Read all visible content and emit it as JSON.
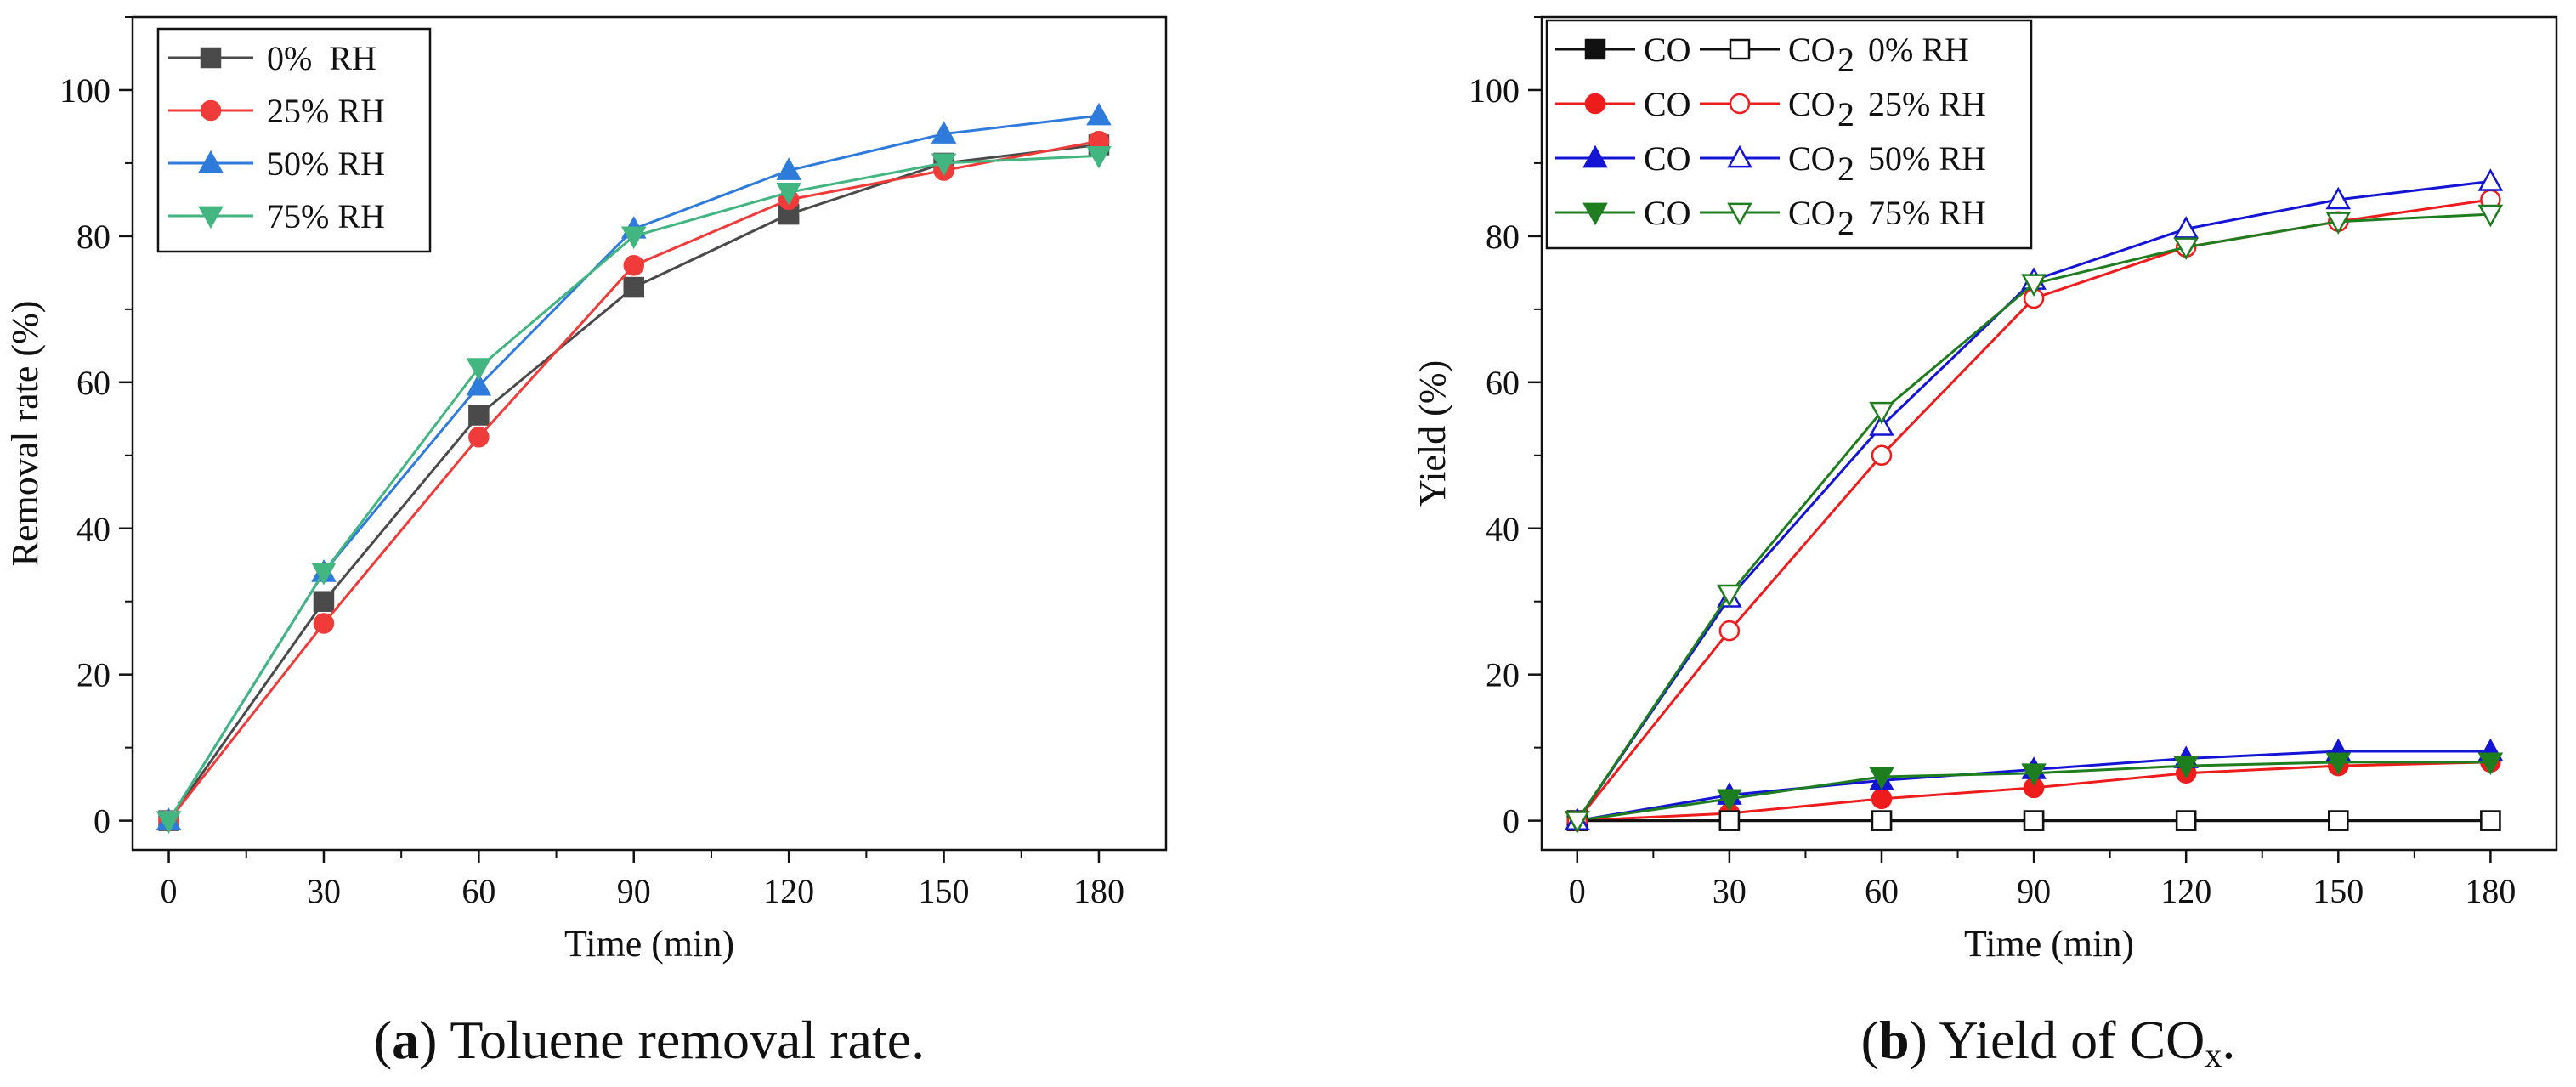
{
  "chart_data": [
    {
      "type": "line",
      "caption": {
        "open": "(",
        "letter": "a",
        "rest": ") Toluene removal rate."
      },
      "xlabel": "Time (min)",
      "ylabel": "Removal rate (%)",
      "xlim": [
        -7,
        193
      ],
      "ylim": [
        -4,
        110
      ],
      "x": [
        0,
        30,
        60,
        90,
        120,
        150,
        180
      ],
      "xticks": [
        0,
        30,
        60,
        90,
        120,
        150,
        180
      ],
      "yticks": [
        0,
        20,
        40,
        60,
        80,
        100
      ],
      "grid": false,
      "legend_position": "top-left",
      "series": [
        {
          "name": "0%  RH",
          "color": "#4a4a4a",
          "marker": "square",
          "filled": true,
          "values": [
            0,
            30,
            55.5,
            73,
            83,
            90,
            92.5
          ]
        },
        {
          "name": "25% RH",
          "color": "#ef3b39",
          "marker": "circle",
          "filled": true,
          "values": [
            0,
            27,
            52.5,
            76,
            85,
            89,
            93
          ]
        },
        {
          "name": "50% RH",
          "color": "#2e7bdc",
          "marker": "triangle-up",
          "filled": true,
          "values": [
            0,
            34,
            59.5,
            81,
            89,
            94,
            96.5
          ]
        },
        {
          "name": "75% RH",
          "color": "#43b581",
          "marker": "triangle-down",
          "filled": true,
          "values": [
            0,
            34,
            62,
            80,
            86,
            90,
            91
          ]
        }
      ]
    },
    {
      "type": "line",
      "caption": {
        "open": "(",
        "letter": "b",
        "rest": ") Yield of CO",
        "sub": "x",
        "end": "."
      },
      "xlabel": "Time (min)",
      "ylabel": "Yield (%)",
      "xlim": [
        -7,
        193
      ],
      "ylim": [
        -4,
        110
      ],
      "x": [
        0,
        30,
        60,
        90,
        120,
        150,
        180
      ],
      "xticks": [
        0,
        30,
        60,
        90,
        120,
        150,
        180
      ],
      "yticks": [
        0,
        20,
        40,
        60,
        80,
        100
      ],
      "grid": false,
      "legend_position": "top-left",
      "legend": [
        {
          "co": "CO",
          "co2": "CO",
          "sub": "2",
          "rh": "0% RH",
          "color": "#111111",
          "co_marker": "square",
          "co2_marker": "square"
        },
        {
          "co": "CO",
          "co2": "CO",
          "sub": "2",
          "rh": "25% RH",
          "color": "#ee1c1c",
          "co_marker": "circle",
          "co2_marker": "circle"
        },
        {
          "co": "CO",
          "co2": "CO",
          "sub": "2",
          "rh": "50% RH",
          "color": "#1414d4",
          "co_marker": "triangle-up",
          "co2_marker": "triangle-up"
        },
        {
          "co": "CO",
          "co2": "CO",
          "sub": "2",
          "rh": "75% RH",
          "color": "#1e7d1e",
          "co_marker": "triangle-down",
          "co2_marker": "triangle-down"
        }
      ],
      "series": [
        {
          "name": "CO 0% RH",
          "color": "#111111",
          "marker": "square",
          "filled": true,
          "values": [
            0,
            0,
            0,
            0,
            0,
            0,
            0
          ]
        },
        {
          "name": "CO 25% RH",
          "color": "#ee1c1c",
          "marker": "circle",
          "filled": true,
          "values": [
            0,
            1,
            3,
            4.5,
            6.5,
            7.5,
            8
          ]
        },
        {
          "name": "CO 50% RH",
          "color": "#1414d4",
          "marker": "triangle-up",
          "filled": true,
          "values": [
            0,
            3.5,
            5.5,
            7,
            8.5,
            9.5,
            9.5
          ]
        },
        {
          "name": "CO 75% RH",
          "color": "#1e7d1e",
          "marker": "triangle-down",
          "filled": true,
          "values": [
            0,
            3,
            6,
            6.5,
            7.5,
            8,
            8
          ]
        },
        {
          "name": "CO2 0% RH",
          "color": "#111111",
          "marker": "square",
          "filled": false,
          "values": [
            0,
            0,
            0,
            0,
            0,
            0,
            0
          ]
        },
        {
          "name": "CO2 25% RH",
          "color": "#ee1c1c",
          "marker": "circle",
          "filled": false,
          "values": [
            0,
            26,
            50,
            71.5,
            78.5,
            82,
            85
          ]
        },
        {
          "name": "CO2 50% RH",
          "color": "#1414d4",
          "marker": "triangle-up",
          "filled": false,
          "values": [
            0,
            30.5,
            54,
            74,
            81,
            85,
            87.5
          ]
        },
        {
          "name": "CO2 75% RH",
          "color": "#1e7d1e",
          "marker": "triangle-down",
          "filled": false,
          "values": [
            0,
            31,
            56,
            73.5,
            78.5,
            82,
            83
          ]
        }
      ]
    }
  ]
}
